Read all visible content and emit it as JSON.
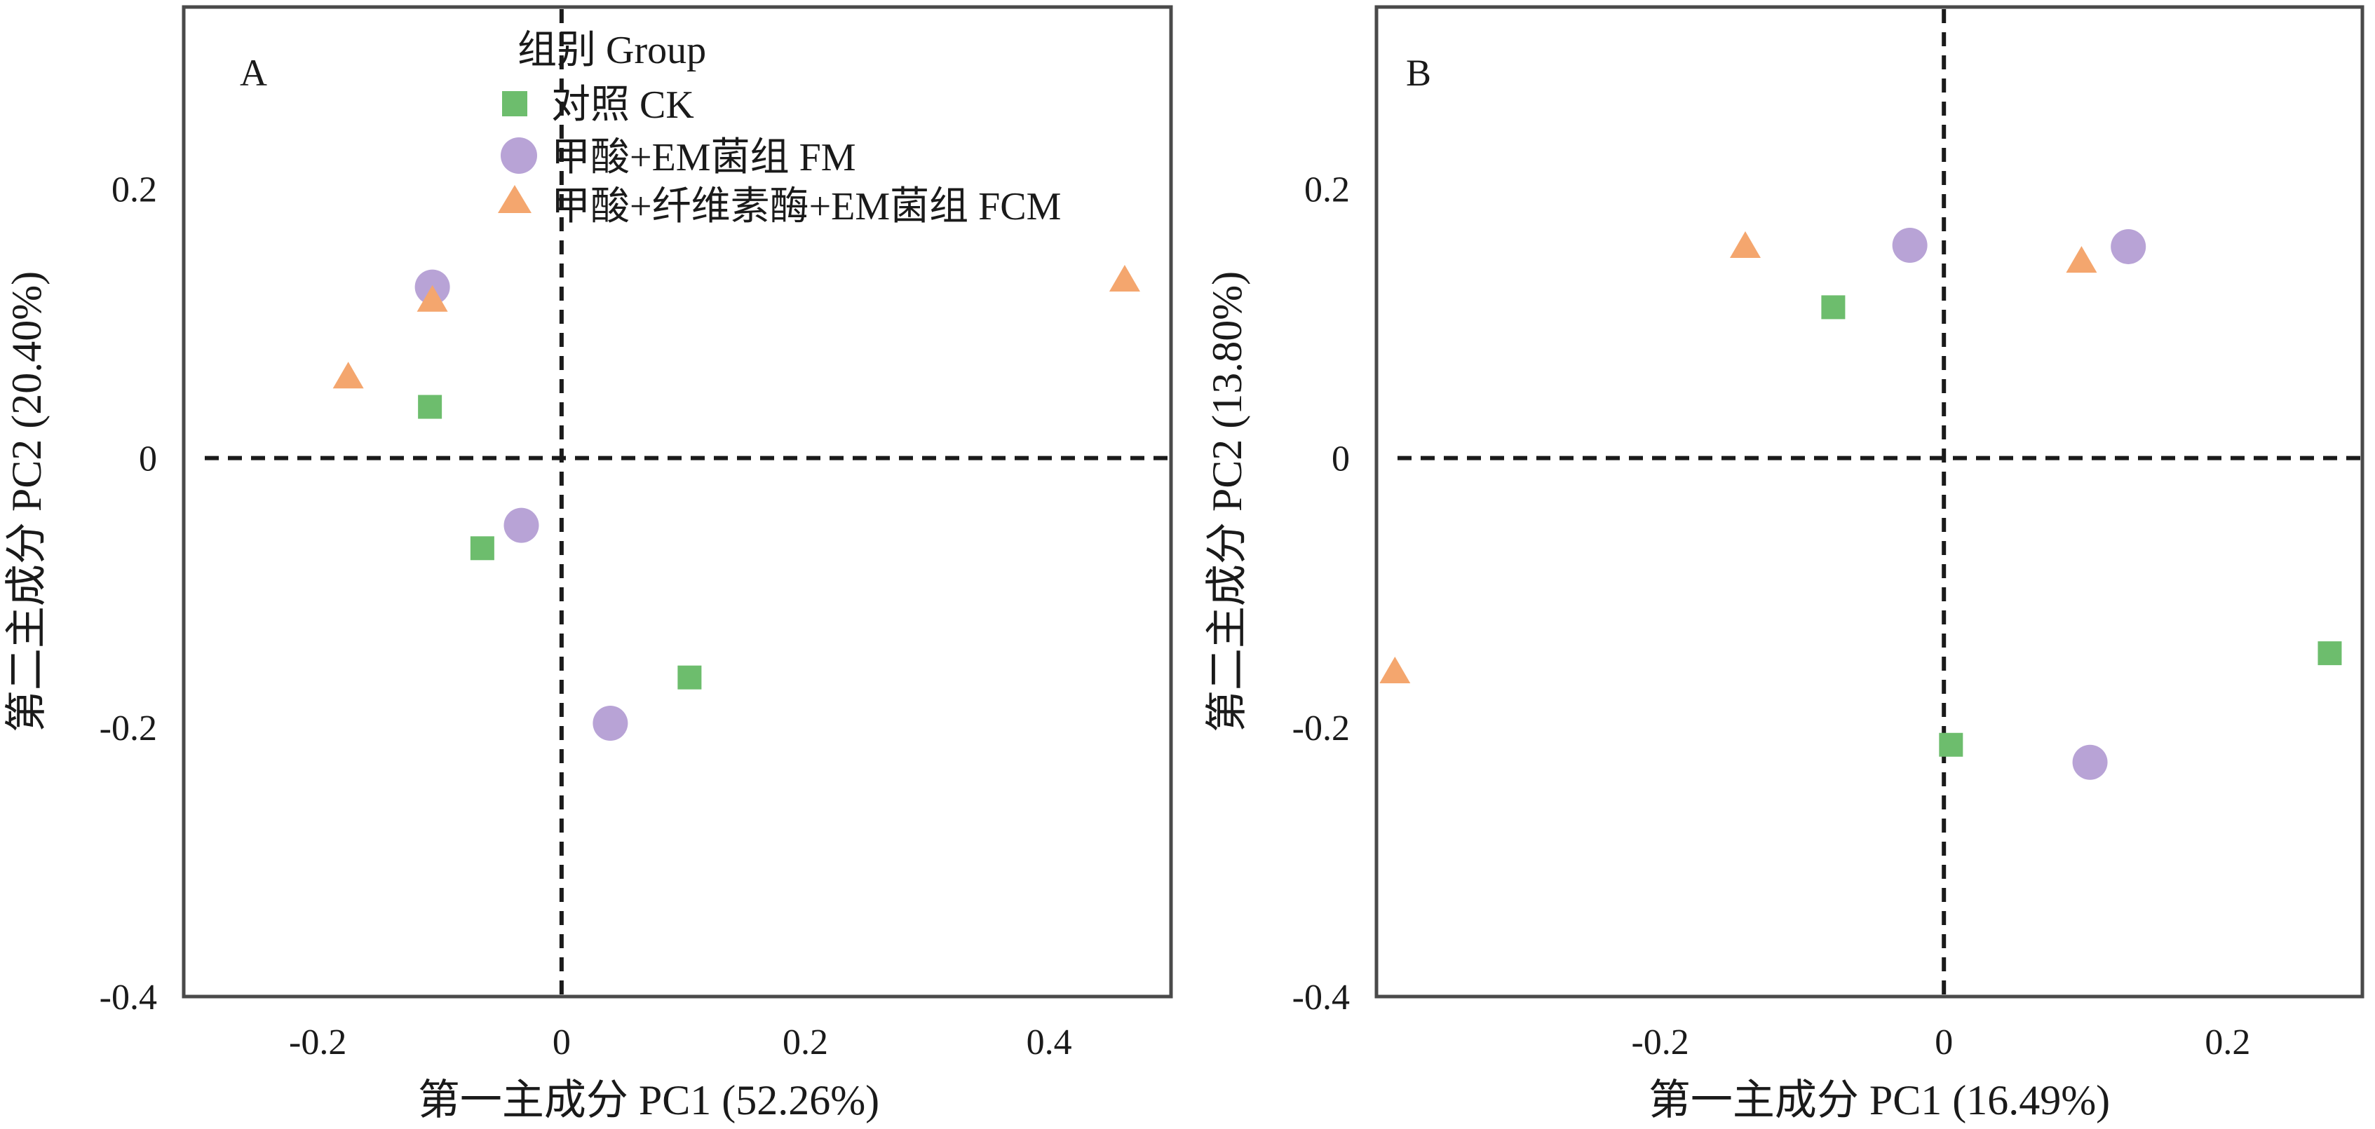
{
  "colors": {
    "ck": "#6dbd6d",
    "fm": "#b8a3d6",
    "fcm": "#f4a66e",
    "frame": "#4a4a4a",
    "guide": "#1a1a1a",
    "text": "#1a1a1a"
  },
  "legend": {
    "title": "组别 Group",
    "items": [
      {
        "key": "ck",
        "marker": "square",
        "label": "对照 CK"
      },
      {
        "key": "fm",
        "marker": "circle",
        "label": "甲酸+EM菌组 FM"
      },
      {
        "key": "fcm",
        "marker": "triangle",
        "label": "甲酸+纤维素酶+EM菌组 FCM"
      }
    ]
  },
  "chart_data": [
    {
      "type": "scatter",
      "panel_label": "A",
      "xlabel": "第一主成分 PC1 (52.26%)",
      "ylabel": "第二主成分 PC2 (20.40%)",
      "xlim": [
        -0.31,
        0.5
      ],
      "ylim": [
        -0.4,
        0.335
      ],
      "xticks": [
        {
          "value": -0.2,
          "label": "-0.2"
        },
        {
          "value": 0,
          "label": "0"
        },
        {
          "value": 0.2,
          "label": "0.2"
        },
        {
          "value": 0.4,
          "label": "0.4"
        }
      ],
      "yticks": [
        {
          "value": 0.2,
          "label": "0.2"
        },
        {
          "value": 0,
          "label": "0"
        },
        {
          "value": -0.2,
          "label": "-0.2"
        },
        {
          "value": -0.4,
          "label": "-0.4"
        }
      ],
      "reference_lines": {
        "x": 0,
        "y": 0
      },
      "series": [
        {
          "name": "对照 CK",
          "key": "ck",
          "marker": "square",
          "points": [
            {
              "x": -0.108,
              "y": 0.038
            },
            {
              "x": -0.065,
              "y": -0.067
            },
            {
              "x": 0.105,
              "y": -0.163
            }
          ]
        },
        {
          "name": "甲酸+EM菌组 FM",
          "key": "fm",
          "marker": "circle",
          "points": [
            {
              "x": -0.106,
              "y": 0.127
            },
            {
              "x": -0.033,
              "y": -0.05
            },
            {
              "x": 0.04,
              "y": -0.197
            }
          ]
        },
        {
          "name": "甲酸+纤维素酶+EM菌组 FCM",
          "key": "fcm",
          "marker": "triangle",
          "points": [
            {
              "x": -0.106,
              "y": 0.117
            },
            {
              "x": -0.175,
              "y": 0.06
            },
            {
              "x": 0.462,
              "y": 0.132
            }
          ]
        }
      ]
    },
    {
      "type": "scatter",
      "panel_label": "B",
      "xlabel": "第一主成分 PC1 (16.49%)",
      "ylabel": "第二主成分 PC2 (13.80%)",
      "xlim": [
        -0.4,
        0.295
      ],
      "ylim": [
        -0.4,
        0.335
      ],
      "xticks": [
        {
          "value": -0.2,
          "label": "-0.2"
        },
        {
          "value": 0,
          "label": "0"
        },
        {
          "value": 0.2,
          "label": "0.2"
        }
      ],
      "yticks": [
        {
          "value": 0.2,
          "label": "0.2"
        },
        {
          "value": 0,
          "label": "0"
        },
        {
          "value": -0.2,
          "label": "-0.2"
        },
        {
          "value": -0.4,
          "label": "-0.4"
        }
      ],
      "reference_lines": {
        "x": 0,
        "y": 0
      },
      "series": [
        {
          "name": "对照 CK",
          "key": "ck",
          "marker": "square",
          "points": [
            {
              "x": -0.078,
              "y": 0.112
            },
            {
              "x": 0.005,
              "y": -0.213
            },
            {
              "x": 0.272,
              "y": -0.145
            }
          ]
        },
        {
          "name": "甲酸+EM菌组 FM",
          "key": "fm",
          "marker": "circle",
          "points": [
            {
              "x": -0.024,
              "y": 0.158
            },
            {
              "x": 0.103,
              "y": -0.226
            },
            {
              "x": 0.13,
              "y": 0.157
            }
          ]
        },
        {
          "name": "甲酸+纤维素酶+EM菌组 FCM",
          "key": "fcm",
          "marker": "triangle",
          "points": [
            {
              "x": -0.14,
              "y": 0.157
            },
            {
              "x": 0.097,
              "y": 0.146
            },
            {
              "x": -0.387,
              "y": -0.159
            }
          ]
        }
      ]
    }
  ]
}
